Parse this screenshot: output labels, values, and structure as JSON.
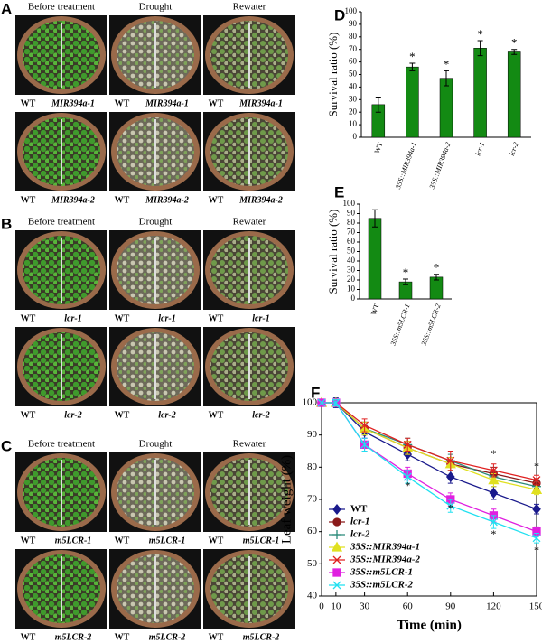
{
  "panels": [
    {
      "letter": "A",
      "columns": [
        "Before treatment",
        "Drought",
        "Rewater"
      ],
      "rows": [
        {
          "left": "WT",
          "right": "MIR394a-1"
        },
        {
          "left": "WT",
          "right": "MIR394a-2"
        }
      ]
    },
    {
      "letter": "B",
      "columns": [
        "Before treatment",
        "Drought",
        "Rewater"
      ],
      "rows": [
        {
          "left": "WT",
          "right": "lcr-1"
        },
        {
          "left": "WT",
          "right": "lcr-2"
        }
      ]
    },
    {
      "letter": "C",
      "columns": [
        "Before treatment",
        "Drought",
        "Rewater"
      ],
      "rows": [
        {
          "left": "WT",
          "right": "m5LCR-1"
        },
        {
          "left": "WT",
          "right": "m5LCR-2"
        }
      ]
    }
  ],
  "chart_data": [
    {
      "type": "bar",
      "label": "D",
      "ylabel": "Survival ratio (%)",
      "categories": [
        "WT",
        "35S::MIR394a-1",
        "35S::MIR394a-2",
        "lcr-1",
        "lcr-2"
      ],
      "values": [
        26,
        56,
        47,
        71,
        68
      ],
      "errors": [
        6,
        3,
        6,
        6,
        2
      ],
      "significance": [
        null,
        "*",
        "*",
        "*",
        "*"
      ],
      "color": "#138a13",
      "ylim": [
        0,
        100
      ],
      "yticks": [
        0,
        10,
        20,
        30,
        40,
        50,
        60,
        70,
        80,
        90,
        100
      ]
    },
    {
      "type": "bar",
      "label": "E",
      "ylabel": "Survival ratio (%)",
      "categories": [
        "WT",
        "35S::m5LCR-1",
        "35S::m5LCR-2"
      ],
      "values": [
        85,
        18,
        23
      ],
      "errors": [
        9,
        3,
        3
      ],
      "significance": [
        null,
        "*",
        "*"
      ],
      "color": "#138a13",
      "ylim": [
        0,
        100
      ],
      "yticks": [
        0,
        10,
        20,
        30,
        40,
        50,
        60,
        70,
        80,
        90,
        100
      ]
    },
    {
      "type": "line",
      "label": "F",
      "xlabel": "Time (min)",
      "ylabel": "Leaf weight (%)",
      "x": [
        0,
        10,
        30,
        60,
        90,
        120,
        150
      ],
      "xlim": [
        0,
        150
      ],
      "xticks": [
        0,
        10,
        30,
        60,
        90,
        120,
        150
      ],
      "ylim": [
        40,
        100
      ],
      "yticks": [
        40,
        50,
        60,
        70,
        80,
        90,
        100
      ],
      "legend": "lower left",
      "series": [
        {
          "name": "WT",
          "color": "#1a1a8c",
          "marker": "diamond",
          "values": [
            100,
            100,
            91,
            84,
            77,
            72,
            67
          ],
          "errors": [
            0,
            1.5,
            2,
            2,
            2,
            2,
            1.5
          ]
        },
        {
          "name": "lcr-1",
          "color": "#8b1a1a",
          "marker": "circle",
          "values": [
            100,
            100,
            92,
            86,
            81,
            78,
            75
          ],
          "errors": [
            0,
            1,
            2,
            2,
            2,
            2,
            1.5
          ]
        },
        {
          "name": "lcr-2",
          "color": "#2a8a7a",
          "marker": "plus",
          "values": [
            100,
            100,
            92,
            87,
            82,
            77,
            74
          ],
          "errors": [
            0,
            1,
            2,
            2,
            2,
            2,
            1.5
          ]
        },
        {
          "name": "35S::MIR394a-1",
          "color": "#e0e020",
          "marker": "triangle",
          "values": [
            100,
            100,
            92,
            86,
            81,
            76,
            73
          ],
          "errors": [
            0,
            1,
            2,
            2,
            2,
            2,
            1.5
          ]
        },
        {
          "name": "35S::MIR394a-2",
          "color": "#e02020",
          "marker": "x",
          "values": [
            100,
            100,
            93,
            87,
            82,
            79,
            76
          ],
          "errors": [
            0,
            1,
            2,
            2,
            3,
            2,
            1.5
          ]
        },
        {
          "name": "35S::m5LCR-1",
          "color": "#e020e0",
          "marker": "square",
          "values": [
            100,
            100,
            87,
            78,
            70,
            65,
            60
          ],
          "errors": [
            0,
            1,
            2,
            2,
            2,
            2,
            1.5
          ]
        },
        {
          "name": "35S::m5LCR-2",
          "color": "#20e0f0",
          "marker": "x",
          "values": [
            100,
            100,
            87,
            77,
            68,
            63,
            58
          ],
          "errors": [
            0,
            1,
            2,
            2,
            2,
            2,
            1.5
          ]
        }
      ],
      "annotations": [
        {
          "x": 120,
          "y": 84,
          "text": "*"
        },
        {
          "x": 150,
          "y": 80,
          "text": "*"
        },
        {
          "x": 60,
          "y": 74,
          "text": "*"
        },
        {
          "x": 90,
          "y": 67,
          "text": "*"
        },
        {
          "x": 120,
          "y": 59,
          "text": "*"
        },
        {
          "x": 150,
          "y": 54,
          "text": "*"
        }
      ]
    }
  ]
}
